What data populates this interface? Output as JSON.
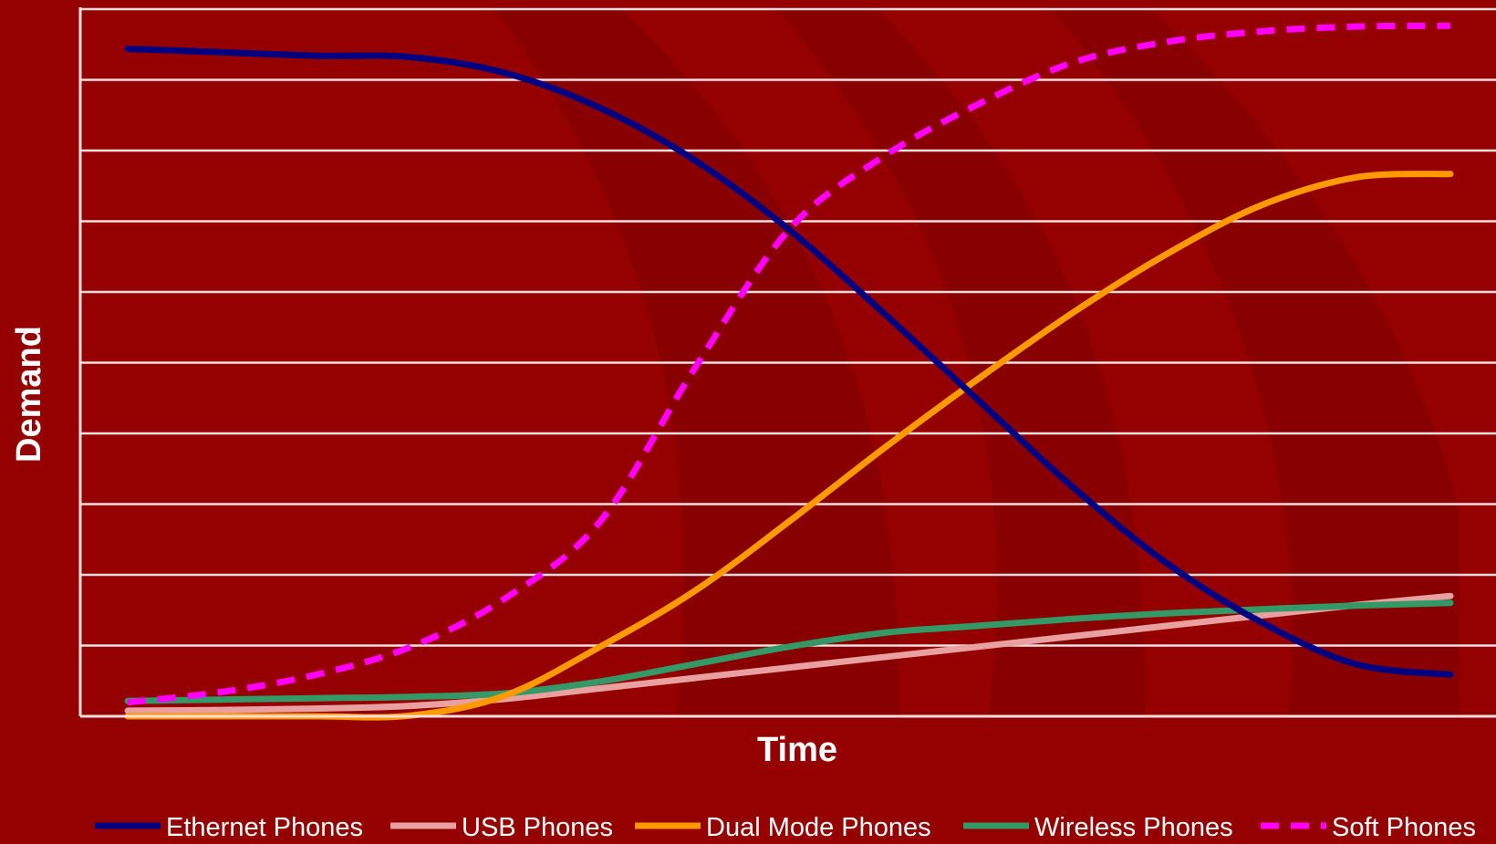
{
  "chart_data": {
    "type": "line",
    "title": "",
    "xlabel": "Time",
    "ylabel": "Demand",
    "x": [
      0,
      1,
      2,
      3,
      4,
      5,
      6,
      7,
      8,
      9,
      10,
      11,
      12,
      13,
      14
    ],
    "xlim": [
      0,
      14
    ],
    "ylim": [
      0,
      100
    ],
    "grid": true,
    "legend_position": "bottom",
    "series": [
      {
        "name": "Ethernet Phones",
        "color": "#000080",
        "dash": false,
        "values": [
          96.0,
          95.5,
          95.0,
          94.8,
          92.5,
          87.5,
          80.0,
          70.0,
          58.0,
          45.5,
          33.0,
          22.0,
          13.5,
          7.5,
          6.0
        ]
      },
      {
        "name": "USB Phones",
        "color": "#E8A0A0",
        "dash": false,
        "values": [
          0.8,
          0.9,
          1.1,
          1.5,
          2.5,
          4.0,
          5.5,
          7.0,
          8.5,
          10.0,
          11.5,
          13.0,
          14.5,
          16.0,
          17.3
        ]
      },
      {
        "name": "Dual Mode Phones",
        "color": "#FF9900",
        "dash": false,
        "values": [
          0.0,
          0.0,
          0.0,
          0.1,
          3.0,
          10.0,
          18.0,
          28.0,
          38.5,
          48.5,
          58.0,
          66.5,
          73.5,
          77.5,
          78.0
        ]
      },
      {
        "name": "Wireless Phones",
        "color": "#339966",
        "dash": false,
        "values": [
          2.2,
          2.4,
          2.6,
          2.8,
          3.3,
          5.0,
          7.5,
          10.0,
          12.0,
          13.0,
          14.0,
          14.8,
          15.4,
          15.9,
          16.3
        ]
      },
      {
        "name": "Soft Phones",
        "color": "#FF00FF",
        "dash": true,
        "values": [
          2.0,
          3.5,
          6.0,
          10.0,
          17.0,
          28.0,
          50.0,
          70.0,
          80.5,
          88.0,
          94.0,
          97.0,
          98.5,
          99.2,
          99.3
        ]
      }
    ]
  }
}
